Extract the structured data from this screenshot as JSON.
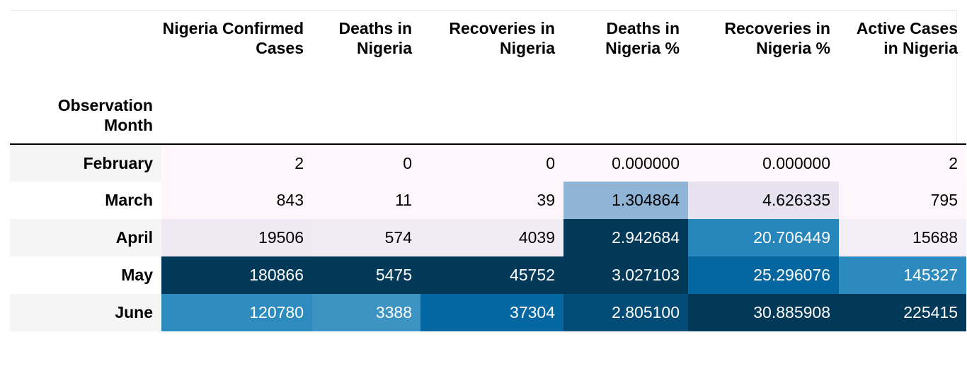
{
  "table": {
    "index_name": "Observation Month",
    "columns": [
      "Nigeria Confirmed Cases",
      "Deaths in Nigeria",
      "Recoveries in Nigeria",
      "Deaths in Nigeria %",
      "Recoveries in Nigeria %",
      "Active Cases in Nigeria"
    ],
    "rows": [
      {
        "label": "February",
        "values": [
          "2",
          "0",
          "0",
          "0.000000",
          "0.000000",
          "2"
        ],
        "colors": [
          "#fff7fb",
          "#fff7fb",
          "#fff7fb",
          "#fff7fb",
          "#fff7fb",
          "#fff7fb"
        ],
        "text": [
          "#000000",
          "#000000",
          "#000000",
          "#000000",
          "#000000",
          "#000000"
        ]
      },
      {
        "label": "March",
        "values": [
          "843",
          "11",
          "39",
          "1.304864",
          "4.626335",
          "795"
        ],
        "colors": [
          "#fef6fa",
          "#fef6fa",
          "#fef6fa",
          "#8fb4d6",
          "#e6e2ef",
          "#fef6fa"
        ],
        "text": [
          "#000000",
          "#000000",
          "#000000",
          "#000000",
          "#000000",
          "#000000"
        ]
      },
      {
        "label": "April",
        "values": [
          "19506",
          "574",
          "4039",
          "2.942684",
          "20.706449",
          "15688"
        ],
        "colors": [
          "#efe9f3",
          "#f1ebf4",
          "#f1ebf4",
          "#023858",
          "#2685bb",
          "#f4eef6"
        ],
        "text": [
          "#000000",
          "#000000",
          "#000000",
          "#ffffff",
          "#ffffff",
          "#000000"
        ]
      },
      {
        "label": "May",
        "values": [
          "180866",
          "5475",
          "45752",
          "3.027103",
          "25.296076",
          "145327"
        ],
        "colors": [
          "#023858",
          "#023858",
          "#023858",
          "#023858",
          "#0566a0",
          "#2c8abe"
        ],
        "text": [
          "#ffffff",
          "#ffffff",
          "#ffffff",
          "#ffffff",
          "#ffffff",
          "#ffffff"
        ]
      },
      {
        "label": "June",
        "values": [
          "120780",
          "3388",
          "37304",
          "2.805100",
          "30.885908",
          "225415"
        ],
        "colors": [
          "#2d8bbe",
          "#3d93c2",
          "#0567a1",
          "#034c78",
          "#023858",
          "#023858"
        ],
        "text": [
          "#ffffff",
          "#ffffff",
          "#ffffff",
          "#ffffff",
          "#ffffff",
          "#ffffff"
        ]
      }
    ]
  }
}
